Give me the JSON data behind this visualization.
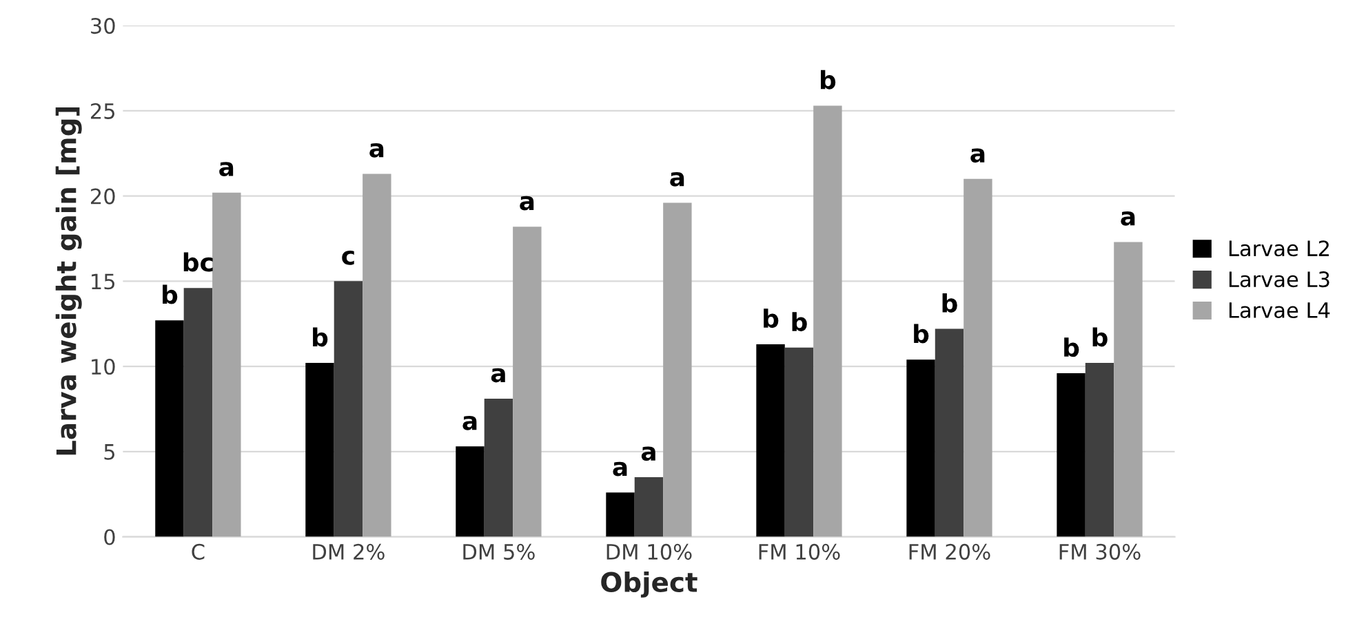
{
  "chart_data": {
    "type": "bar",
    "xlabel": "Object",
    "ylabel": "Larva weight gain [mg]",
    "categories": [
      "C",
      "DM 2%",
      "DM 5%",
      "DM 10%",
      "FM 10%",
      "FM 20%",
      "FM 30%"
    ],
    "series": [
      {
        "name": "Larvae L2",
        "color": "#000000",
        "values": [
          12.7,
          10.2,
          5.3,
          2.6,
          11.3,
          10.4,
          9.6
        ]
      },
      {
        "name": "Larvae L3",
        "color": "#404040",
        "values": [
          14.6,
          15.0,
          8.1,
          3.5,
          11.1,
          12.2,
          10.2
        ]
      },
      {
        "name": "Larvae L4",
        "color": "#a6a6a6",
        "values": [
          20.2,
          21.3,
          18.2,
          19.6,
          25.3,
          21.0,
          17.3
        ]
      }
    ],
    "ylim": [
      0,
      30
    ],
    "yticks": [
      0,
      5,
      10,
      15,
      20,
      25,
      30
    ],
    "grid": "y",
    "legend": "right",
    "annotations": [
      "b",
      "bc",
      "a",
      "b",
      "c",
      "a",
      "a",
      "a",
      "a",
      "a",
      "a",
      "a",
      "b",
      "b",
      "b",
      "b",
      "b",
      "a",
      "b",
      "b",
      "a"
    ]
  }
}
